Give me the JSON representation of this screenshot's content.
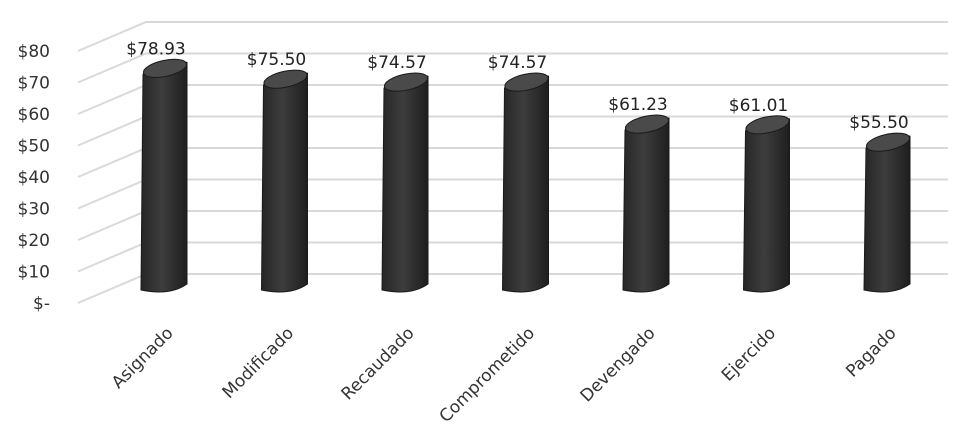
{
  "chart_data": {
    "type": "bar",
    "categories": [
      "Asignado",
      "Modificado",
      "Recaudado",
      "Comprometido",
      "Devengado",
      "Ejercido",
      "Pagado"
    ],
    "values": [
      78.93,
      75.5,
      74.57,
      74.57,
      61.23,
      61.01,
      55.5
    ],
    "data_labels": [
      "$78.93",
      "$75.50",
      "$74.57",
      "$74.57",
      "$61.23",
      "$61.01",
      "$55.50"
    ],
    "y_ticks": [
      0,
      10,
      20,
      30,
      40,
      50,
      60,
      70,
      80
    ],
    "y_tick_labels": [
      "$-",
      "$10",
      "$20",
      "$30",
      "$40",
      "$50",
      "$60",
      "$70",
      "$80"
    ],
    "ylim": [
      0,
      85
    ],
    "title": "",
    "xlabel": "",
    "ylabel": "",
    "grid": true,
    "legend": "none",
    "style": "3d-cylinder",
    "bar_color": "#333333",
    "grid_color": "#d9d9d9"
  }
}
